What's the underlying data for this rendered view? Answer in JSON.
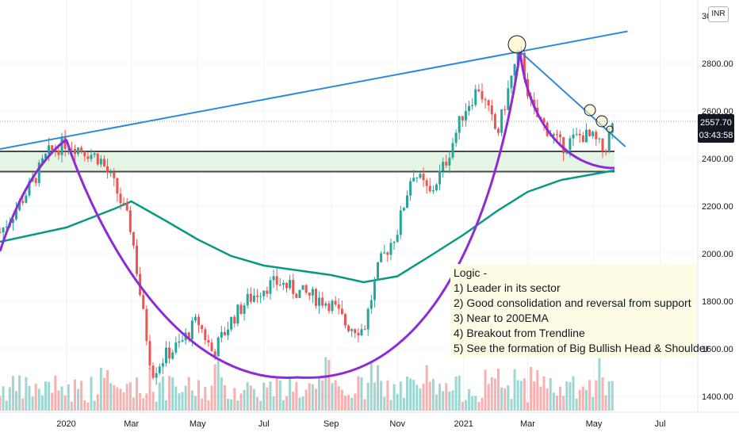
{
  "currency_label": "INR",
  "price_badge": {
    "price": "2557.70",
    "countdown": "03:43:58"
  },
  "colors": {
    "up": "#26a69a",
    "down": "#ef5350",
    "ema": "#089981",
    "trendline": "#2e8ade",
    "cup": "#8e2bd6",
    "support": "#4a4a4a",
    "zone": "#e6f4e6",
    "annotation_bg": "#fdfbe4"
  },
  "annotation": {
    "lines": [
      "Logic -",
      "1) Leader in its sector",
      "2) Good consolidation and reversal from support",
      "3) Near to 200EMA",
      "4) Breakout from Trendline",
      "5) See the formation of Big Bullish Head & Shoulder"
    ]
  },
  "chart_data": {
    "type": "line",
    "instrument_currency": "INR",
    "last_price": 2557.7,
    "x_ticks": [
      "2020",
      "Mar",
      "May",
      "Jul",
      "Sep",
      "Nov",
      "2021",
      "Mar",
      "May",
      "Jul"
    ],
    "y_ticks": [
      "1400.00",
      "1600.00",
      "1800.00",
      "2000.00",
      "2200.00",
      "2400.00",
      "2600.00",
      "2800.00"
    ],
    "y_top_partial_label": "30",
    "ylim": [
      1330,
      3060
    ],
    "series": [
      {
        "kind": "candles_close_path",
        "points": [
          [
            "2019-11-01",
            2090
          ],
          [
            "2019-11-15",
            2180
          ],
          [
            "2019-12-01",
            2300
          ],
          [
            "2019-12-15",
            2420
          ],
          [
            "2020-01-01",
            2470
          ],
          [
            "2020-01-15",
            2440
          ],
          [
            "2020-02-01",
            2400
          ],
          [
            "2020-02-15",
            2280
          ],
          [
            "2020-03-01",
            2100
          ],
          [
            "2020-03-10",
            1800
          ],
          [
            "2020-03-20",
            1500
          ],
          [
            "2020-04-01",
            1570
          ],
          [
            "2020-04-15",
            1620
          ],
          [
            "2020-05-01",
            1720
          ],
          [
            "2020-05-15",
            1580
          ],
          [
            "2020-06-01",
            1720
          ],
          [
            "2020-06-15",
            1800
          ],
          [
            "2020-07-01",
            1860
          ],
          [
            "2020-07-15",
            1880
          ],
          [
            "2020-08-01",
            1840
          ],
          [
            "2020-08-15",
            1820
          ],
          [
            "2020-09-01",
            1790
          ],
          [
            "2020-09-15",
            1700
          ],
          [
            "2020-10-01",
            1680
          ],
          [
            "2020-10-15",
            1950
          ],
          [
            "2020-11-01",
            2100
          ],
          [
            "2020-11-15",
            2350
          ],
          [
            "2020-12-01",
            2250
          ],
          [
            "2020-12-15",
            2380
          ],
          [
            "2021-01-01",
            2600
          ],
          [
            "2021-01-15",
            2700
          ],
          [
            "2021-02-01",
            2500
          ],
          [
            "2021-02-15",
            2760
          ],
          [
            "2021-02-22",
            2840
          ],
          [
            "2021-03-05",
            2600
          ],
          [
            "2021-03-20",
            2520
          ],
          [
            "2021-04-01",
            2450
          ],
          [
            "2021-04-20",
            2500
          ],
          [
            "2021-05-01",
            2480
          ],
          [
            "2021-05-10",
            2430
          ],
          [
            "2021-05-20",
            2557.7
          ]
        ]
      },
      {
        "kind": "ema200",
        "points": [
          [
            "2019-11-01",
            2050
          ],
          [
            "2020-01-01",
            2110
          ],
          [
            "2020-02-15",
            2190
          ],
          [
            "2020-03-01",
            2220
          ],
          [
            "2020-04-01",
            2140
          ],
          [
            "2020-05-01",
            2060
          ],
          [
            "2020-06-01",
            1990
          ],
          [
            "2020-07-01",
            1950
          ],
          [
            "2020-08-01",
            1930
          ],
          [
            "2020-09-01",
            1910
          ],
          [
            "2020-10-01",
            1880
          ],
          [
            "2020-11-01",
            1905
          ],
          [
            "2020-12-01",
            1990
          ],
          [
            "2021-01-01",
            2080
          ],
          [
            "2021-02-01",
            2180
          ],
          [
            "2021-03-01",
            2260
          ],
          [
            "2021-04-01",
            2310
          ],
          [
            "2021-05-20",
            2350
          ]
        ]
      }
    ],
    "drawings": {
      "resistance_trendline": [
        [
          "2019-11-01",
          2440
        ],
        [
          "2021-06-01",
          2935
        ]
      ],
      "falling_trendline": [
        [
          "2021-02-22",
          2850
        ],
        [
          "2021-05-30",
          2450
        ]
      ],
      "support_lines": [
        2430,
        2345
      ],
      "support_zone": [
        2345,
        2430
      ],
      "cup_left": [
        [
          "2019-11-01",
          2010
        ],
        [
          "2020-01-01",
          2480
        ],
        [
          "2019-11-25",
          2350
        ]
      ],
      "cup_main": [
        [
          "2020-01-01",
          2480
        ],
        [
          "2020-08-01",
          1480
        ],
        [
          "2021-02-22",
          2850
        ]
      ],
      "cup_right": [
        [
          "2021-02-22",
          2850
        ],
        [
          "2021-05-20",
          2360
        ]
      ]
    },
    "grid": true,
    "legend": "none"
  }
}
